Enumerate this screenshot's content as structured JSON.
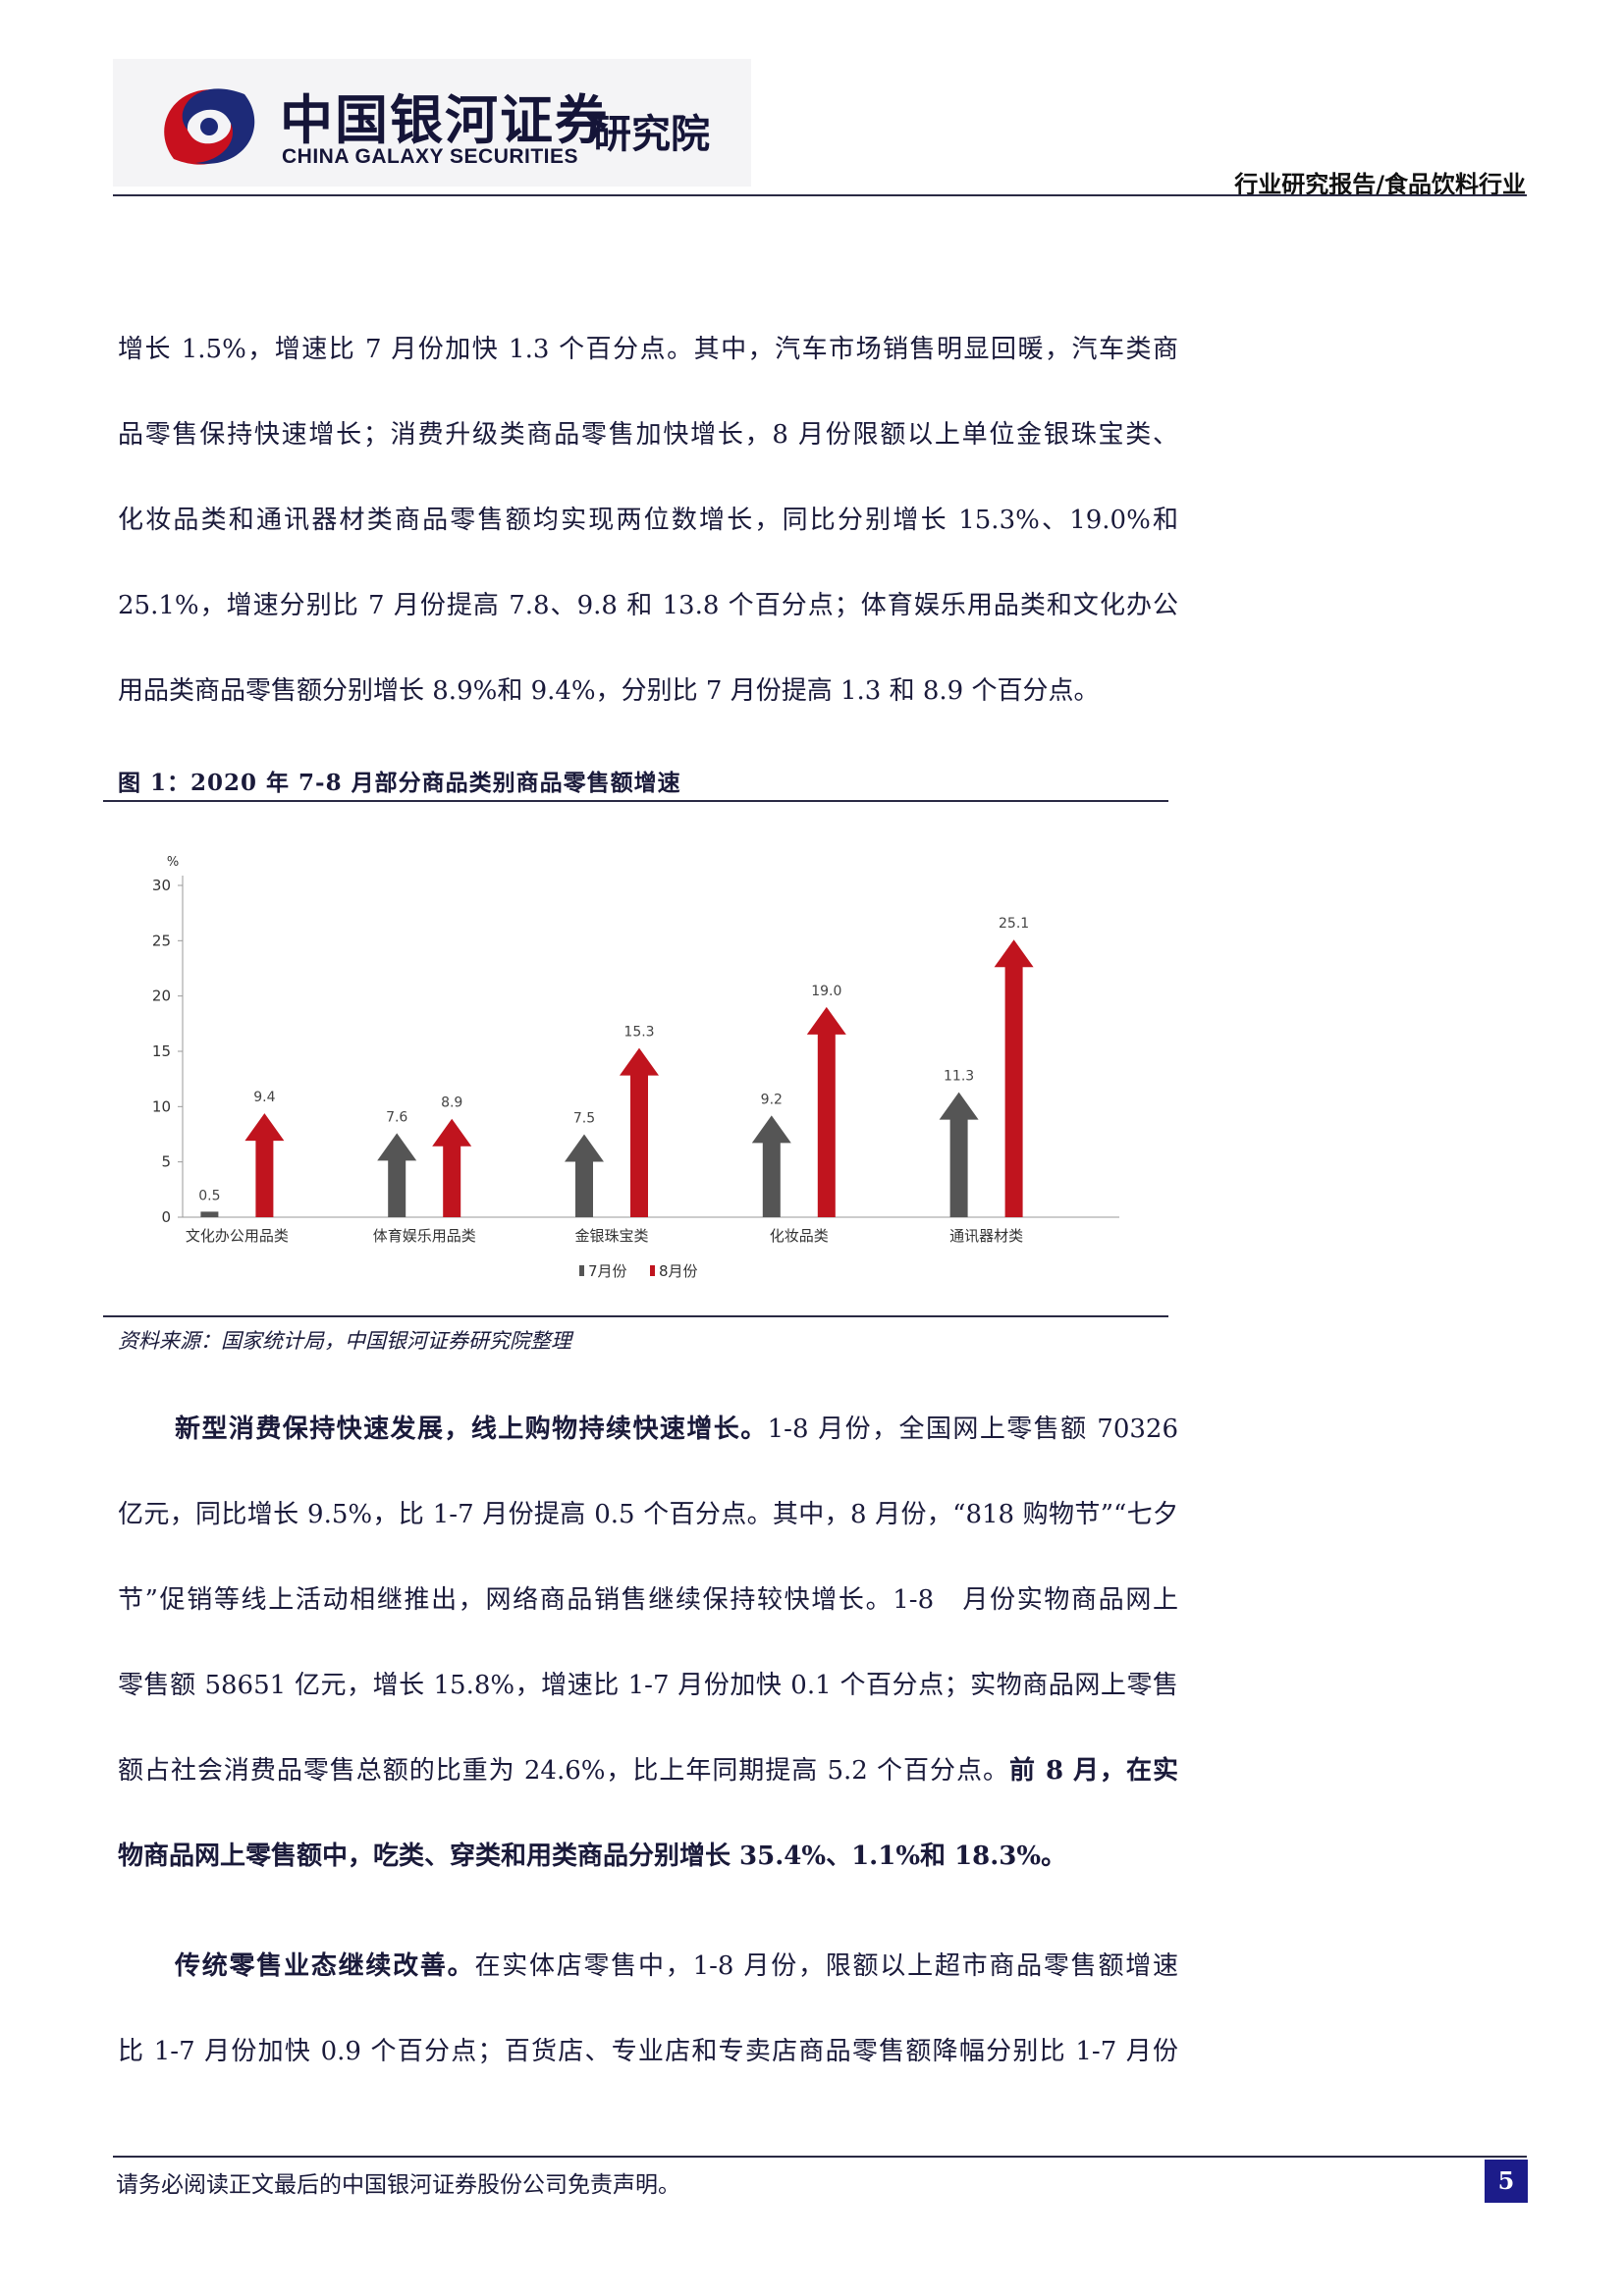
{
  "header": {
    "logo_cn": "中国银河证券",
    "logo_en": "CHINA GALAXY SECURITIES",
    "logo_inst": "研究院",
    "report_type": "行业研究报告/食品饮料行业"
  },
  "para1": {
    "lines": [
      "增长 1.5%，增速比 7 月份加快 1.3 个百分点。其中，汽车市场销售明显回暖，汽车类商",
      "品零售保持快速增长；消费升级类商品零售加快增长，8 月份限额以上单位金银珠宝类、",
      "化妆品类和通讯器材类商品零售额均实现两位数增长，同比分别增长 15.3%、19.0%和",
      "25.1%，增速分别比 7 月份提高 7.8、9.8 和 13.8 个百分点；体育娱乐用品类和文化办公",
      "用品类商品零售额分别增长 8.9%和 9.4%，分别比 7 月份提高 1.3 和 8.9 个百分点。"
    ]
  },
  "figure": {
    "title": "图 1：2020 年 7-8 月部分商品类别商品零售额增速",
    "source": "资料来源：国家统计局，中国银河证券研究院整理"
  },
  "chart_data": {
    "type": "bar",
    "ylabel": "%",
    "ylim": [
      0,
      30
    ],
    "yticks": [
      0,
      5,
      10,
      15,
      20,
      25,
      30
    ],
    "categories": [
      "文化办公用品类",
      "体育娱乐用品类",
      "金银珠宝类",
      "化妆品类",
      "通讯器材类"
    ],
    "series": [
      {
        "name": "7月份",
        "values": [
          0.5,
          7.6,
          7.5,
          9.2,
          11.3
        ],
        "color": "#555555"
      },
      {
        "name": "8月份",
        "values": [
          9.4,
          8.9,
          15.3,
          19.0,
          25.1
        ],
        "color": "#c0141e"
      }
    ],
    "legend_position": "bottom",
    "grid": false
  },
  "para2": {
    "lead": "新型消费保持快速发展，线上购物持续快速增长。",
    "line1_rest": "1-8 月份，全国网上零售额 70326",
    "line2": "亿元，同比增长 9.5%，比 1-7 月份提高 0.5 个百分点。其中，8 月份，“818 购物节”“七夕",
    "line3": "节”促销等线上活动相继推出，网络商品销售继续保持较快增长。1-8　月份实物商品网上",
    "line4": "零售额 58651 亿元，增长 15.8%，增速比 1-7 月份加快 0.1 个百分点；实物商品网上零售",
    "line5_normal": "额占社会消费品零售总额的比重为 24.6%，比上年同期提高 5.2 个百分点。",
    "line5_bold": "前 8 月，在实",
    "line6_bold": "物商品网上零售额中，吃类、穿类和用类商品分别增长 35.4%、1.1%和 18.3%。"
  },
  "para3": {
    "lead": "传统零售业态继续改善。",
    "line1_rest": "在实体店零售中，1-8 月份，限额以上超市商品零售额增速",
    "line2": "比 1-7 月份加快 0.9 个百分点；百货店、专业店和专卖店商品零售额降幅分别比 1-7 月份"
  },
  "footer": {
    "disclaimer": "请务必阅读正文最后的中国银河证券股份公司免责声明。",
    "page": "5"
  }
}
